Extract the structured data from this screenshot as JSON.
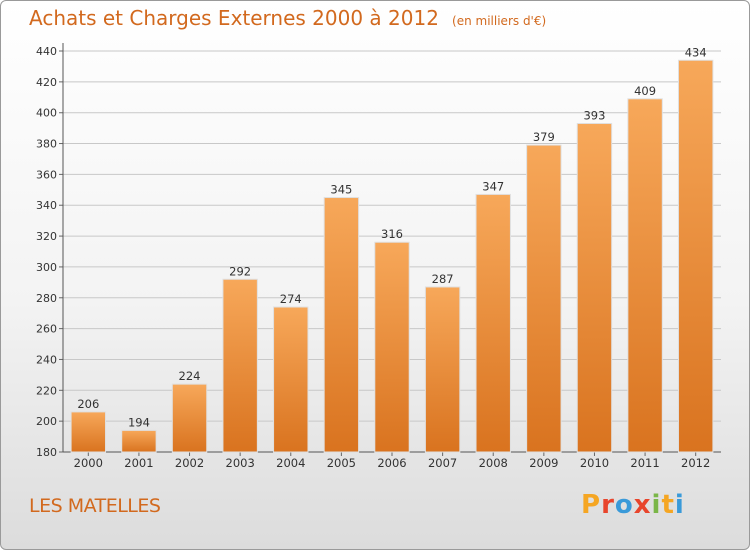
{
  "header": {
    "title": "Achats et Charges Externes 2000 à 2012",
    "unit": "(en milliers d'€)"
  },
  "footer": {
    "commune": "LES MATELLES",
    "logo_text": "Proxiti",
    "logo_letters": [
      {
        "ch": "P",
        "color": "#f5a623"
      },
      {
        "ch": "r",
        "color": "#e8452c"
      },
      {
        "ch": "o",
        "color": "#3a9ad9"
      },
      {
        "ch": "x",
        "color": "#e8452c"
      },
      {
        "ch": "i",
        "color": "#7ab648"
      },
      {
        "ch": "t",
        "color": "#f5a623"
      },
      {
        "ch": "i",
        "color": "#3a9ad9"
      }
    ]
  },
  "colors": {
    "accent": "#d2691e",
    "bar_top": "#f7a85a",
    "bar_bottom": "#d9731f"
  },
  "chart_data": {
    "type": "bar",
    "title": "Achats et Charges Externes 2000 à 2012",
    "subtitle": "(en milliers d'€)",
    "xlabel": "",
    "ylabel": "",
    "categories": [
      "2000",
      "2001",
      "2002",
      "2003",
      "2004",
      "2005",
      "2006",
      "2007",
      "2008",
      "2009",
      "2010",
      "2011",
      "2012"
    ],
    "values": [
      206,
      194,
      224,
      292,
      274,
      345,
      316,
      287,
      347,
      379,
      393,
      409,
      434
    ],
    "ylim": [
      180,
      440
    ],
    "yticks": [
      180,
      200,
      220,
      240,
      260,
      280,
      300,
      320,
      340,
      360,
      380,
      400,
      420,
      440
    ],
    "grid": true,
    "legend": "none"
  }
}
